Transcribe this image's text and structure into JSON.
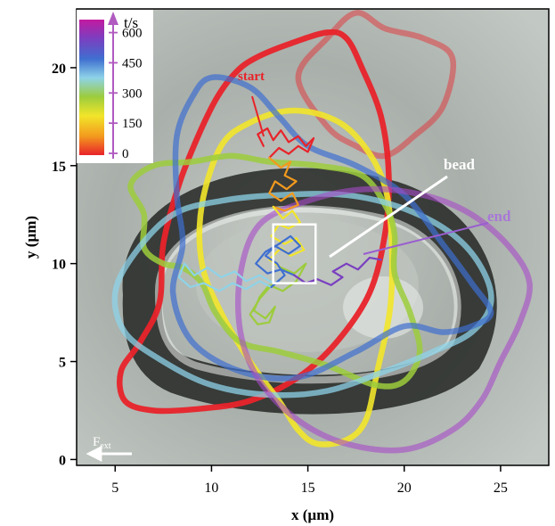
{
  "chart_data": {
    "type": "line",
    "xlabel": "x (µm)",
    "ylabel": "y (µm)",
    "xlim": [
      3,
      27.5
    ],
    "ylim": [
      -0.3,
      23
    ],
    "x_ticks": [
      5,
      10,
      15,
      20,
      25
    ],
    "y_ticks": [
      0,
      5,
      10,
      15,
      20
    ],
    "colorbar": {
      "label": "t/s",
      "ticks": [
        0,
        150,
        300,
        450,
        600
      ],
      "range": [
        0,
        700
      ],
      "colors": [
        "#e8232a",
        "#f39a1e",
        "#f2e52a",
        "#9ccc3c",
        "#8ed3e8",
        "#3f6fd0",
        "#7a3fc0",
        "#c21aa0"
      ]
    },
    "annotations": {
      "start": "start",
      "end": "end",
      "bead": "bead",
      "force": "F",
      "force_sub": "ext"
    },
    "bead_box": {
      "x": [
        13.2,
        15.4
      ],
      "y": [
        9.0,
        12.0
      ]
    },
    "cell_outlines": [
      {
        "color": "#e8232a",
        "opacity": 0.95,
        "points": [
          [
            12.3,
            20.5
          ],
          [
            14.0,
            21.2
          ],
          [
            16.0,
            21.8
          ],
          [
            17.0,
            21.5
          ],
          [
            17.8,
            20.0
          ],
          [
            18.8,
            17.5
          ],
          [
            19.2,
            14.5
          ],
          [
            19.0,
            11.5
          ],
          [
            18.2,
            8.5
          ],
          [
            16.5,
            6.0
          ],
          [
            14.5,
            4.2
          ],
          [
            12.0,
            3.0
          ],
          [
            9.5,
            2.6
          ],
          [
            7.0,
            2.5
          ],
          [
            5.5,
            3.0
          ],
          [
            5.3,
            4.5
          ],
          [
            6.3,
            6.0
          ],
          [
            7.3,
            8.0
          ],
          [
            7.5,
            11.0
          ],
          [
            8.3,
            14.0
          ],
          [
            9.3,
            16.5
          ],
          [
            10.3,
            18.5
          ],
          [
            11.3,
            19.8
          ],
          [
            12.3,
            20.5
          ]
        ]
      },
      {
        "color": "#e8232a",
        "opacity": 0.45,
        "points": [
          [
            14.5,
            19.5
          ],
          [
            16.0,
            21.5
          ],
          [
            17.5,
            22.8
          ],
          [
            19.0,
            22.0
          ],
          [
            21.0,
            21.5
          ],
          [
            22.5,
            20.5
          ],
          [
            22.0,
            18.0
          ],
          [
            20.5,
            16.5
          ],
          [
            19.0,
            15.5
          ],
          [
            17.5,
            16.0
          ],
          [
            16.0,
            17.0
          ],
          [
            14.5,
            19.5
          ]
        ]
      },
      {
        "color": "#f2e52a",
        "opacity": 0.9,
        "points": [
          [
            10.5,
            16.0
          ],
          [
            12.0,
            17.2
          ],
          [
            14.0,
            17.8
          ],
          [
            16.0,
            17.5
          ],
          [
            17.5,
            16.5
          ],
          [
            18.8,
            14.5
          ],
          [
            19.3,
            12.0
          ],
          [
            19.3,
            8.0
          ],
          [
            18.6,
            4.5
          ],
          [
            18.0,
            2.0
          ],
          [
            17.0,
            1.0
          ],
          [
            15.5,
            0.8
          ],
          [
            14.5,
            1.5
          ],
          [
            13.5,
            3.0
          ],
          [
            12.0,
            5.0
          ],
          [
            10.5,
            7.5
          ],
          [
            9.5,
            10.0
          ],
          [
            9.5,
            13.0
          ],
          [
            10.5,
            16.0
          ]
        ]
      },
      {
        "color": "#9ccc3c",
        "opacity": 0.85,
        "points": [
          [
            11.0,
            15.5
          ],
          [
            9.0,
            15.2
          ],
          [
            7.0,
            15.0
          ],
          [
            5.8,
            14.0
          ],
          [
            6.5,
            12.5
          ],
          [
            6.5,
            10.8
          ],
          [
            7.5,
            10.0
          ],
          [
            8.5,
            9.8
          ],
          [
            9.5,
            9.0
          ],
          [
            10.2,
            7.5
          ],
          [
            11.5,
            6.0
          ],
          [
            13.5,
            5.5
          ],
          [
            16.0,
            4.8
          ],
          [
            18.5,
            3.8
          ],
          [
            20.0,
            4.0
          ],
          [
            20.8,
            5.5
          ],
          [
            20.3,
            7.5
          ],
          [
            19.5,
            9.5
          ],
          [
            19.5,
            11.5
          ],
          [
            19.0,
            13.0
          ],
          [
            17.8,
            14.5
          ],
          [
            15.5,
            15.0
          ],
          [
            13.0,
            15.2
          ],
          [
            11.0,
            15.5
          ]
        ]
      },
      {
        "color": "#8ed3e8",
        "opacity": 0.75,
        "points": [
          [
            8.0,
            12.5
          ],
          [
            10.5,
            13.2
          ],
          [
            13.5,
            13.5
          ],
          [
            17.0,
            13.5
          ],
          [
            20.0,
            12.8
          ],
          [
            22.5,
            11.5
          ],
          [
            24.0,
            9.8
          ],
          [
            24.5,
            8.0
          ],
          [
            23.5,
            6.5
          ],
          [
            21.5,
            5.5
          ],
          [
            19.0,
            4.5
          ],
          [
            16.0,
            3.5
          ],
          [
            13.0,
            3.3
          ],
          [
            10.0,
            3.8
          ],
          [
            7.5,
            5.0
          ],
          [
            5.5,
            6.5
          ],
          [
            5.0,
            8.5
          ],
          [
            6.0,
            10.5
          ],
          [
            8.0,
            12.5
          ]
        ]
      },
      {
        "color": "#3f6fd0",
        "opacity": 0.7,
        "points": [
          [
            10.0,
            19.5
          ],
          [
            12.0,
            19.0
          ],
          [
            13.5,
            17.5
          ],
          [
            15.0,
            16.0
          ],
          [
            17.5,
            15.0
          ],
          [
            20.0,
            13.5
          ],
          [
            22.0,
            11.0
          ],
          [
            23.5,
            9.0
          ],
          [
            24.5,
            7.5
          ],
          [
            23.5,
            6.8
          ],
          [
            22.0,
            6.5
          ],
          [
            20.0,
            6.8
          ],
          [
            17.5,
            5.5
          ],
          [
            14.5,
            4.2
          ],
          [
            11.5,
            4.5
          ],
          [
            9.0,
            6.0
          ],
          [
            8.0,
            8.5
          ],
          [
            8.5,
            11.0
          ],
          [
            8.2,
            13.5
          ],
          [
            8.2,
            16.5
          ],
          [
            9.0,
            18.5
          ],
          [
            10.0,
            19.5
          ]
        ]
      },
      {
        "color": "#a64bc8",
        "opacity": 0.6,
        "points": [
          [
            12.5,
            12.0
          ],
          [
            15.0,
            13.2
          ],
          [
            18.0,
            13.8
          ],
          [
            21.0,
            13.5
          ],
          [
            23.5,
            12.5
          ],
          [
            25.5,
            10.8
          ],
          [
            26.5,
            9.0
          ],
          [
            26.0,
            7.0
          ],
          [
            25.0,
            5.0
          ],
          [
            24.0,
            3.0
          ],
          [
            22.5,
            1.5
          ],
          [
            20.0,
            0.5
          ],
          [
            17.0,
            0.8
          ],
          [
            14.5,
            2.0
          ],
          [
            12.5,
            4.0
          ],
          [
            11.5,
            6.5
          ],
          [
            11.5,
            9.5
          ],
          [
            12.5,
            12.0
          ]
        ]
      }
    ],
    "trajectory": {
      "comment": "Bead track, colored by time t/s",
      "segments": [
        {
          "color": "#e8232a",
          "points": [
            [
              12.7,
              16.0
            ],
            [
              12.4,
              16.6
            ],
            [
              12.9,
              16.9
            ],
            [
              13.2,
              16.3
            ],
            [
              13.6,
              16.8
            ],
            [
              14.0,
              16.2
            ],
            [
              14.5,
              16.5
            ],
            [
              14.9,
              16.0
            ],
            [
              15.3,
              16.4
            ],
            [
              15.0,
              15.7
            ],
            [
              14.5,
              16.0
            ],
            [
              14.0,
              15.6
            ],
            [
              13.5,
              15.9
            ],
            [
              13.0,
              15.4
            ]
          ]
        },
        {
          "color": "#f39a1e",
          "points": [
            [
              13.0,
              15.4
            ],
            [
              13.6,
              14.9
            ],
            [
              14.1,
              15.2
            ],
            [
              13.8,
              14.5
            ],
            [
              14.4,
              14.2
            ],
            [
              13.9,
              13.8
            ],
            [
              13.3,
              14.2
            ],
            [
              13.0,
              13.6
            ],
            [
              13.6,
              13.2
            ],
            [
              14.2,
              13.6
            ],
            [
              14.5,
              13.0
            ],
            [
              13.8,
              12.7
            ],
            [
              13.2,
              12.9
            ]
          ]
        },
        {
          "color": "#f2e52a",
          "points": [
            [
              13.2,
              12.9
            ],
            [
              13.7,
              12.3
            ],
            [
              14.2,
              12.7
            ],
            [
              14.6,
              12.1
            ],
            [
              14.0,
              11.8
            ],
            [
              13.5,
              12.0
            ],
            [
              13.1,
              11.4
            ],
            [
              13.8,
              11.0
            ],
            [
              14.4,
              11.3
            ],
            [
              14.8,
              10.7
            ],
            [
              14.1,
              10.4
            ],
            [
              13.6,
              10.8
            ],
            [
              13.0,
              10.2
            ],
            [
              13.6,
              9.8
            ]
          ]
        },
        {
          "color": "#9ccc3c",
          "points": [
            [
              13.6,
              9.8
            ],
            [
              14.3,
              9.5
            ],
            [
              14.9,
              10.0
            ],
            [
              14.4,
              9.1
            ],
            [
              13.7,
              8.6
            ],
            [
              13.0,
              8.9
            ],
            [
              12.5,
              8.3
            ],
            [
              12.2,
              7.6
            ],
            [
              12.8,
              7.2
            ],
            [
              13.3,
              7.8
            ],
            [
              13.0,
              7.0
            ],
            [
              12.4,
              6.9
            ],
            [
              12.0,
              7.4
            ],
            [
              12.5,
              8.2
            ],
            [
              13.2,
              9.0
            ]
          ]
        },
        {
          "color": "#8ed3e8",
          "points": [
            [
              13.2,
              9.0
            ],
            [
              12.5,
              9.4
            ],
            [
              11.8,
              9.1
            ],
            [
              11.2,
              9.6
            ],
            [
              10.5,
              9.3
            ],
            [
              9.8,
              9.8
            ],
            [
              9.1,
              9.4
            ],
            [
              8.6,
              10.0
            ],
            [
              8.3,
              9.3
            ],
            [
              8.9,
              8.8
            ],
            [
              9.6,
              9.0
            ],
            [
              10.4,
              8.6
            ],
            [
              11.1,
              9.0
            ],
            [
              11.8,
              8.7
            ],
            [
              12.5,
              9.1
            ],
            [
              13.1,
              8.8
            ]
          ]
        },
        {
          "color": "#3f6fd0",
          "points": [
            [
              13.1,
              8.8
            ],
            [
              13.8,
              9.4
            ],
            [
              13.4,
              10.0
            ],
            [
              12.8,
              10.4
            ],
            [
              13.3,
              10.9
            ],
            [
              14.0,
              10.5
            ],
            [
              14.6,
              10.9
            ],
            [
              14.1,
              11.4
            ],
            [
              13.5,
              11.0
            ],
            [
              12.8,
              10.6
            ],
            [
              12.3,
              10.0
            ],
            [
              12.9,
              9.5
            ],
            [
              13.6,
              9.7
            ],
            [
              14.3,
              9.4
            ]
          ]
        },
        {
          "color": "#7a3fc0",
          "points": [
            [
              14.3,
              9.4
            ],
            [
              14.9,
              9.0
            ],
            [
              15.5,
              9.2
            ],
            [
              16.2,
              8.9
            ],
            [
              16.8,
              9.3
            ],
            [
              16.3,
              9.6
            ],
            [
              17.0,
              10.0
            ],
            [
              17.6,
              9.7
            ],
            [
              18.2,
              10.3
            ],
            [
              18.8,
              10.2
            ]
          ]
        }
      ]
    }
  }
}
